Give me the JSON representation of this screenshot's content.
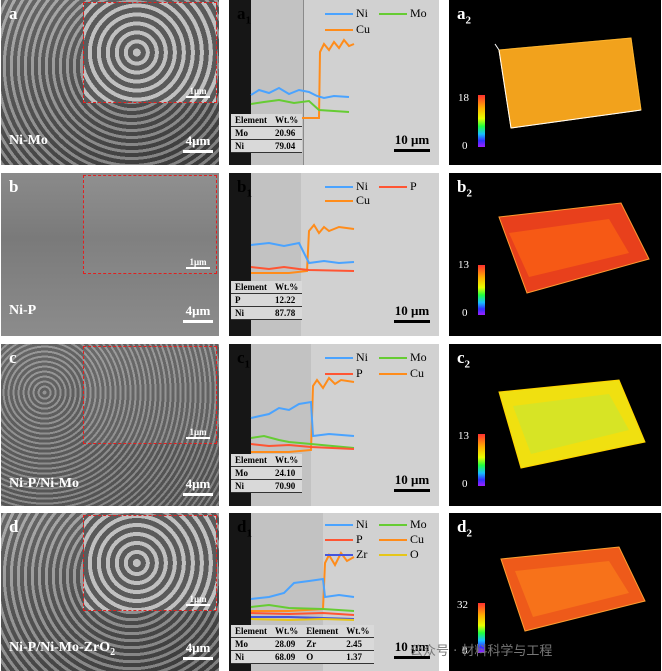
{
  "rows": [
    {
      "sem": {
        "label": "a",
        "material": "Ni-Mo",
        "scale": "4μm",
        "inset_scale": "1μm"
      },
      "xsec": {
        "label": "a",
        "sub": "1",
        "scale": "10 μm",
        "legend": [
          {
            "name": "Ni",
            "color": "#4aa3ff"
          },
          {
            "name": "Mo",
            "color": "#66cc33"
          },
          {
            "name": "Cu",
            "color": "#ff8c1a"
          }
        ],
        "table_head": [
          "Element",
          "Wt.%"
        ],
        "table_rows": [
          [
            "Mo",
            "20.96"
          ],
          [
            "Ni",
            "79.04"
          ]
        ]
      },
      "topo": {
        "label": "a",
        "sub": "2",
        "max": "18",
        "min": "0"
      }
    },
    {
      "sem": {
        "label": "b",
        "material": "Ni-P",
        "scale": "4μm",
        "inset_scale": "1μm"
      },
      "xsec": {
        "label": "b",
        "sub": "1",
        "scale": "10 μm",
        "legend": [
          {
            "name": "Ni",
            "color": "#4aa3ff"
          },
          {
            "name": "P",
            "color": "#ff5533"
          },
          {
            "name": "Cu",
            "color": "#ff8c1a"
          }
        ],
        "table_head": [
          "Element",
          "Wt.%"
        ],
        "table_rows": [
          [
            "P",
            "12.22"
          ],
          [
            "Ni",
            "87.78"
          ]
        ]
      },
      "topo": {
        "label": "b",
        "sub": "2",
        "max": "13",
        "min": "0"
      }
    },
    {
      "sem": {
        "label": "c",
        "material": "Ni-P/Ni-Mo",
        "scale": "4μm",
        "inset_scale": "1μm"
      },
      "xsec": {
        "label": "c",
        "sub": "1",
        "scale": "10 μm",
        "legend": [
          {
            "name": "Ni",
            "color": "#4aa3ff"
          },
          {
            "name": "Mo",
            "color": "#66cc33"
          },
          {
            "name": "P",
            "color": "#ff5533"
          },
          {
            "name": "Cu",
            "color": "#ff8c1a"
          }
        ],
        "table_head": [
          "Element",
          "Wt.%"
        ],
        "table_rows": [
          [
            "Mo",
            "24.10"
          ],
          [
            "Ni",
            "70.90"
          ]
        ]
      },
      "topo": {
        "label": "c",
        "sub": "2",
        "max": "13",
        "min": "0"
      }
    },
    {
      "sem": {
        "label": "d",
        "material": "Ni-P/Ni-Mo-ZrO",
        "material_sub": "2",
        "scale": "4μm",
        "inset_scale": "1μm"
      },
      "xsec": {
        "label": "d",
        "sub": "1",
        "scale": "10 μm",
        "legend": [
          {
            "name": "Ni",
            "color": "#4aa3ff"
          },
          {
            "name": "Mo",
            "color": "#66cc33"
          },
          {
            "name": "P",
            "color": "#ff5533"
          },
          {
            "name": "Cu",
            "color": "#ff8c1a"
          },
          {
            "name": "Zr",
            "color": "#4455dd"
          },
          {
            "name": "O",
            "color": "#e6c619"
          }
        ],
        "table_head": [
          "Element",
          "Wt.%",
          "Element",
          "Wt.%"
        ],
        "table_rows": [
          [
            "Mo",
            "28.09",
            "Zr",
            "2.45"
          ],
          [
            "Ni",
            "68.09",
            "O",
            "1.37"
          ]
        ]
      },
      "topo": {
        "label": "d",
        "sub": "2",
        "max": "32",
        "min": "0"
      }
    }
  ],
  "watermark": "公众号 · 材料科学与工程"
}
